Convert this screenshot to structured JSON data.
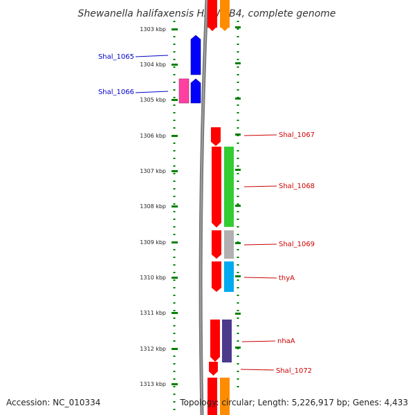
{
  "title": "Shewanella halifaxensis HAW-EB4, complete genome",
  "footer": {
    "accession": "Accession: NC_010334",
    "topology": "Topology: circular; Length: 5,226,917 bp; Genes: 4,433"
  },
  "axis": {
    "unit": "kbp",
    "ticks": [
      "1303 kbp",
      "1304 kbp",
      "1305 kbp",
      "1306 kbp",
      "1307 kbp",
      "1308 kbp",
      "1309 kbp",
      "1310 kbp",
      "1311 kbp",
      "1312 kbp",
      "1313 kbp"
    ]
  },
  "colors": {
    "cds": "#ff0000",
    "plus_strand": "#0000ff",
    "pseudo": "#ff40a0",
    "tick": "#008000",
    "backbone": "#888888",
    "label_left": "#0000cc",
    "label_right": "#cc0000"
  },
  "gene_labels": {
    "left": [
      "Shal_1065",
      "Shal_1066"
    ],
    "right": [
      "Shal_1067",
      "Shal_1068",
      "Shal_1069",
      "thyA",
      "nhaA",
      "Shal_1072"
    ]
  }
}
